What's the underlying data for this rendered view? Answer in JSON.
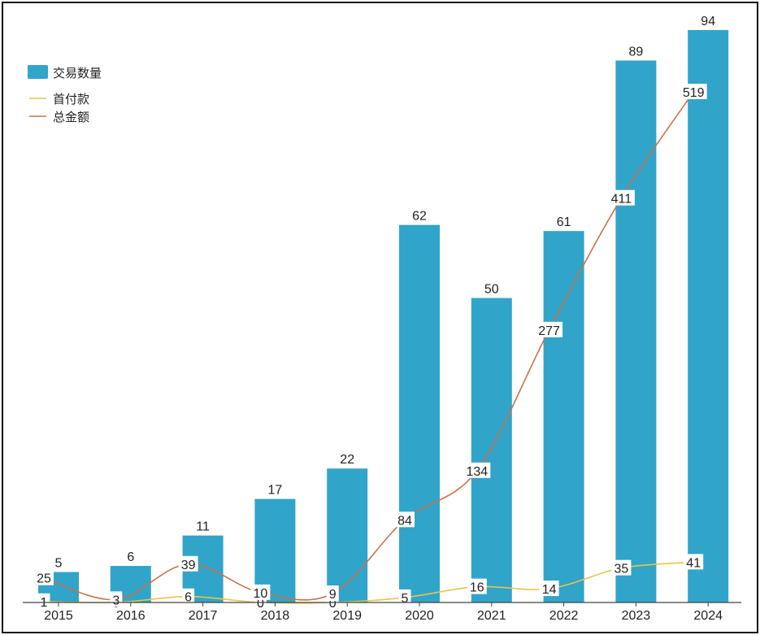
{
  "chart_data": {
    "type": "bar",
    "title": "",
    "xlabel": "",
    "ylabel": "",
    "categories": [
      "2015",
      "2016",
      "2017",
      "2018",
      "2019",
      "2020",
      "2021",
      "2022",
      "2023",
      "2024"
    ],
    "series": [
      {
        "name": "交易数量",
        "kind": "bar",
        "values": [
          5,
          6,
          11,
          17,
          22,
          62,
          50,
          61,
          89,
          94
        ]
      },
      {
        "name": "首付款",
        "kind": "line",
        "values": [
          1,
          0,
          6,
          0,
          0,
          5,
          16,
          14,
          35,
          41
        ]
      },
      {
        "name": "总金额",
        "kind": "line",
        "values": [
          25,
          3,
          39,
          10,
          9,
          84,
          134,
          277,
          411,
          519
        ]
      }
    ],
    "ylim_bar": [
      0,
      94
    ],
    "ylim_line": [
      0,
      519
    ],
    "grid": false,
    "legend_position": "top-left"
  },
  "colors": {
    "bar": "#31a4c9",
    "down_payment_line": "#e8c44a",
    "total_line": "#c8734a",
    "axis": "#444444"
  }
}
